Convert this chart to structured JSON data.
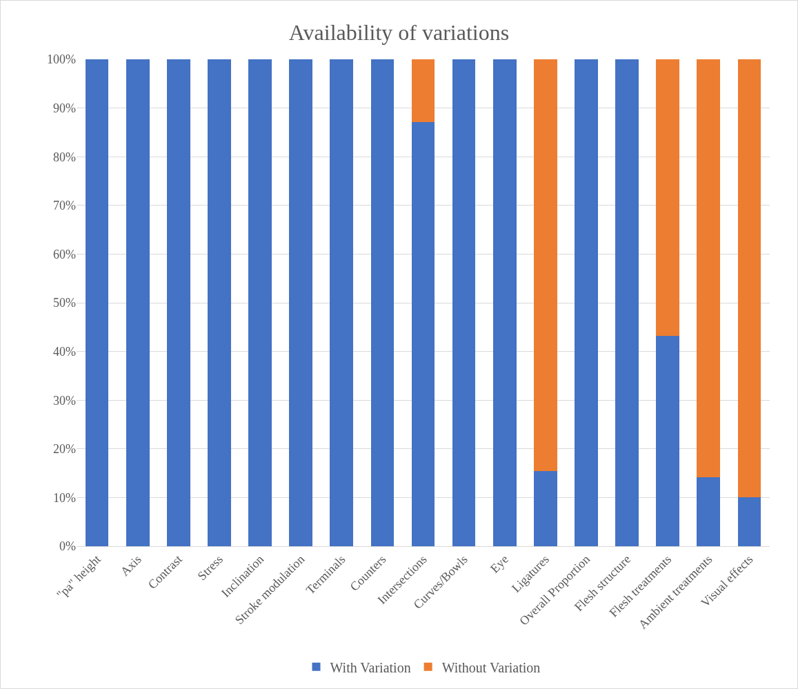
{
  "chart_data": {
    "type": "bar",
    "title": "Availability of variations",
    "stacked": true,
    "categories": [
      "\"pa\" height",
      "Axis",
      "Contrast",
      "Stress",
      "Inclination",
      "Stroke modulation",
      "Terminals",
      "Counters",
      "Intersections",
      "Curves/Bowls",
      "Eye",
      "Ligatures",
      "Overall Proportion",
      "Flesh structure",
      "Flesh treatments",
      "Ambient treatments",
      "Visual effects"
    ],
    "series": [
      {
        "name": "With Variation",
        "color": "#4472c4",
        "values": [
          100,
          100,
          100,
          100,
          100,
          100,
          100,
          100,
          87.1,
          100,
          100,
          15.4,
          100,
          100,
          43.2,
          14.2,
          10
        ]
      },
      {
        "name": "Without Variation",
        "color": "#ed7d31",
        "values": [
          0,
          0,
          0,
          0,
          0,
          0,
          0,
          0,
          12.9,
          0,
          0,
          84.6,
          0,
          0,
          56.8,
          85.8,
          90
        ]
      }
    ],
    "ylim": [
      0,
      100
    ],
    "yticks": [
      {
        "value": 0,
        "label": "0%"
      },
      {
        "value": 10,
        "label": "10%"
      },
      {
        "value": 20,
        "label": "20%"
      },
      {
        "value": 30,
        "label": "30%"
      },
      {
        "value": 40,
        "label": "40%"
      },
      {
        "value": 50,
        "label": "50%"
      },
      {
        "value": 60,
        "label": "60%"
      },
      {
        "value": 70,
        "label": "70%"
      },
      {
        "value": 80,
        "label": "80%"
      },
      {
        "value": 90,
        "label": "90%"
      },
      {
        "value": 100,
        "label": "100%"
      }
    ],
    "grid": "y",
    "legend": "bottom"
  }
}
